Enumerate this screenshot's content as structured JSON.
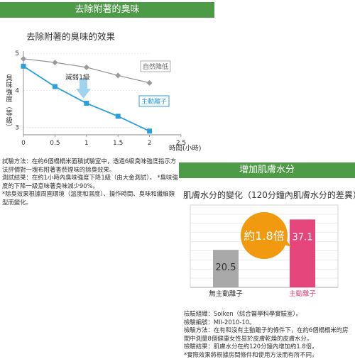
{
  "header_banner": "去除附著的臭味",
  "section_banner": "增加肌膚水分",
  "chart_data": [
    {
      "type": "line",
      "title": "去除附著的臭味的效果",
      "xlabel": "時間(小時)",
      "ylabel": "臭味強度（等級）",
      "xlim": [
        0,
        2.5
      ],
      "ylim": [
        2.8,
        5
      ],
      "x_ticks": [
        "0",
        "0.5",
        "1",
        "1.5",
        "2",
        "2.5"
      ],
      "y_ticks": [
        "3",
        "4",
        "5"
      ],
      "series": [
        {
          "name": "自然降低",
          "color": "#9a9a9a",
          "x": [
            0,
            0.5,
            1,
            1.5,
            2
          ],
          "y": [
            4.85,
            4.75,
            4.62,
            4.4,
            4.2
          ]
        },
        {
          "name": "主動離子",
          "color": "#2a9fd9",
          "x": [
            0,
            0.5,
            1,
            1.5,
            2
          ],
          "y": [
            4.65,
            4.1,
            3.65,
            3.3,
            2.9
          ]
        }
      ],
      "annotations": [
        {
          "text": "減弱1級"
        }
      ]
    },
    {
      "type": "bar",
      "title": "肌膚水分的變化（120分鐘內肌膚水分的差異）",
      "categories": [
        "無主動離子",
        "主動離子"
      ],
      "values": [
        20.5,
        37.1
      ],
      "colors": [
        "#a8a8a8",
        "#e4457a"
      ],
      "ylim": [
        0,
        45
      ],
      "grid": true,
      "callout": "約1.8倍",
      "callout_color": "#f29a0f"
    }
  ],
  "notes_left": [
    "試驗方法：在約6個榻榻米面積試驗室中，透過6級臭味強度指示方法評價對一塊布附著香菸煙味的除臭效果。",
    "測試結果：在約1小時內臭味強度下降1級（由大金測試）。 *臭味強度的下降一級意味著臭味減少90%。"
  ],
  "disclaimer_left": "*除臭效果根據周圍環境（溫度和濕度）、操作時間、臭味和纖維類型而變化。",
  "notes_right": [
    "檢驗組織：Soiken（綜合醫學科學實驗室）。",
    "檢驗編號：MII-2010-10。",
    "檢驗方法：在有和沒有主動離子的條件下，在約6個榻榻米的房間中測量8個健康女性易於皮膚乾燥的皮膚水分。",
    "檢驗結果：肌膚水分在約120分鐘內增加約1.8倍。",
    "*實際效果將根據房間條件和使用方法而有所不同。"
  ]
}
